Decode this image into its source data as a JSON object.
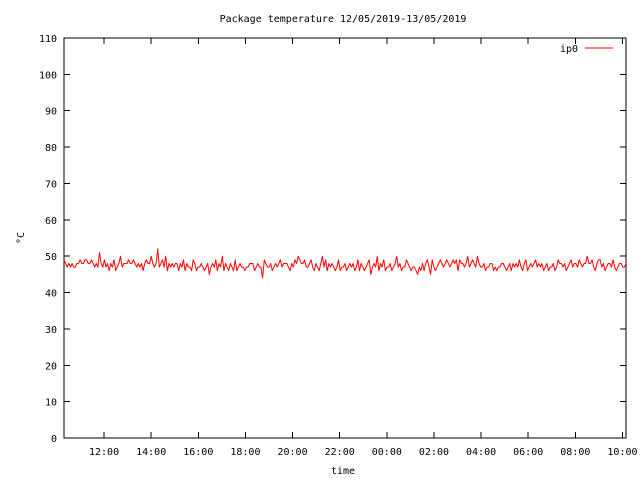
{
  "chart_data": {
    "type": "line",
    "title": "Package temperature 12/05/2019-13/05/2019",
    "xlabel": "time",
    "ylabel": "°C",
    "ylim": [
      0,
      110
    ],
    "yticks": [
      0,
      10,
      20,
      30,
      40,
      50,
      60,
      70,
      80,
      90,
      100,
      110
    ],
    "x_start_hour": 10.3,
    "x_end_hour": 34.15,
    "xticks": [
      {
        "hour": 12,
        "label": "12:00"
      },
      {
        "hour": 14,
        "label": "14:00"
      },
      {
        "hour": 16,
        "label": "16:00"
      },
      {
        "hour": 18,
        "label": "18:00"
      },
      {
        "hour": 20,
        "label": "20:00"
      },
      {
        "hour": 22,
        "label": "22:00"
      },
      {
        "hour": 24,
        "label": "00:00"
      },
      {
        "hour": 26,
        "label": "02:00"
      },
      {
        "hour": 28,
        "label": "04:00"
      },
      {
        "hour": 30,
        "label": "06:00"
      },
      {
        "hour": 32,
        "label": "08:00"
      },
      {
        "hour": 34,
        "label": "10:00"
      }
    ],
    "legend_position": "top-right",
    "grid": false,
    "series": [
      {
        "name": "ip0",
        "color": "#ff0000",
        "values": [
          49,
          48,
          47,
          48,
          47,
          48,
          47,
          47,
          48,
          48,
          49,
          48,
          48,
          49,
          49,
          48,
          48,
          49,
          48,
          47,
          48,
          47,
          51,
          48,
          47,
          49,
          47,
          48,
          46,
          48,
          47,
          49,
          46,
          47,
          48,
          50,
          47,
          48,
          48,
          48,
          49,
          48,
          48,
          49,
          48,
          47,
          48,
          47,
          48,
          46,
          48,
          49,
          48,
          48,
          50,
          48,
          47,
          48,
          52,
          47,
          48,
          49,
          47,
          50,
          46,
          48,
          47,
          48,
          47,
          48,
          48,
          46,
          48,
          47,
          49,
          46,
          48,
          47,
          47,
          46,
          49,
          48,
          46,
          47,
          47,
          48,
          47,
          46,
          47,
          48,
          45,
          47,
          48,
          47,
          49,
          46,
          48,
          47,
          50,
          46,
          48,
          47,
          46,
          48,
          47,
          46,
          49,
          46,
          47,
          48,
          47,
          47,
          46,
          47,
          47,
          48,
          48,
          48,
          46,
          47,
          48,
          47,
          47,
          44,
          49,
          48,
          47,
          47,
          48,
          46,
          47,
          48,
          47,
          48,
          49,
          47,
          48,
          48,
          48,
          47,
          46,
          48,
          47,
          49,
          48,
          50,
          49,
          48,
          48,
          49,
          47,
          47,
          48,
          49,
          47,
          46,
          48,
          47,
          46,
          48,
          50,
          47,
          49,
          46,
          48,
          47,
          48,
          47,
          46,
          47,
          49,
          46,
          47,
          47,
          48,
          46,
          47,
          48,
          47,
          48,
          46,
          47,
          49,
          46,
          48,
          47,
          46,
          47,
          48,
          49,
          45,
          47,
          48,
          47,
          50,
          46,
          48,
          47,
          49,
          46,
          47,
          47,
          48,
          46,
          47,
          48,
          50,
          47,
          48,
          46,
          47,
          47,
          49,
          48,
          47,
          46,
          47,
          47,
          46,
          45,
          47,
          46,
          48,
          46,
          48,
          49,
          47,
          45,
          49,
          47,
          46,
          47,
          48,
          49,
          48,
          47,
          48,
          49,
          48,
          47,
          48,
          49,
          48,
          49,
          46,
          49,
          48,
          48,
          47,
          48,
          50,
          47,
          48,
          49,
          48,
          47,
          50,
          48,
          47,
          47,
          48,
          46,
          47,
          47,
          48,
          48,
          46,
          47,
          46,
          47,
          47,
          48,
          48,
          47,
          46,
          47,
          48,
          46,
          48,
          47,
          48,
          47,
          49,
          47,
          46,
          48,
          49,
          46,
          47,
          48,
          47,
          48,
          49,
          47,
          48,
          47,
          48,
          46,
          47,
          48,
          46,
          47,
          47,
          48,
          46,
          47,
          49,
          48,
          48,
          47,
          48,
          46,
          47,
          48,
          49,
          47,
          48,
          48,
          47,
          49,
          48,
          47,
          48,
          48,
          50,
          48,
          48,
          49,
          47,
          46,
          48,
          49,
          49,
          47,
          48,
          46,
          47,
          48,
          48,
          47,
          49,
          47,
          46,
          47,
          48,
          48,
          47,
          47,
          48
        ]
      }
    ]
  }
}
